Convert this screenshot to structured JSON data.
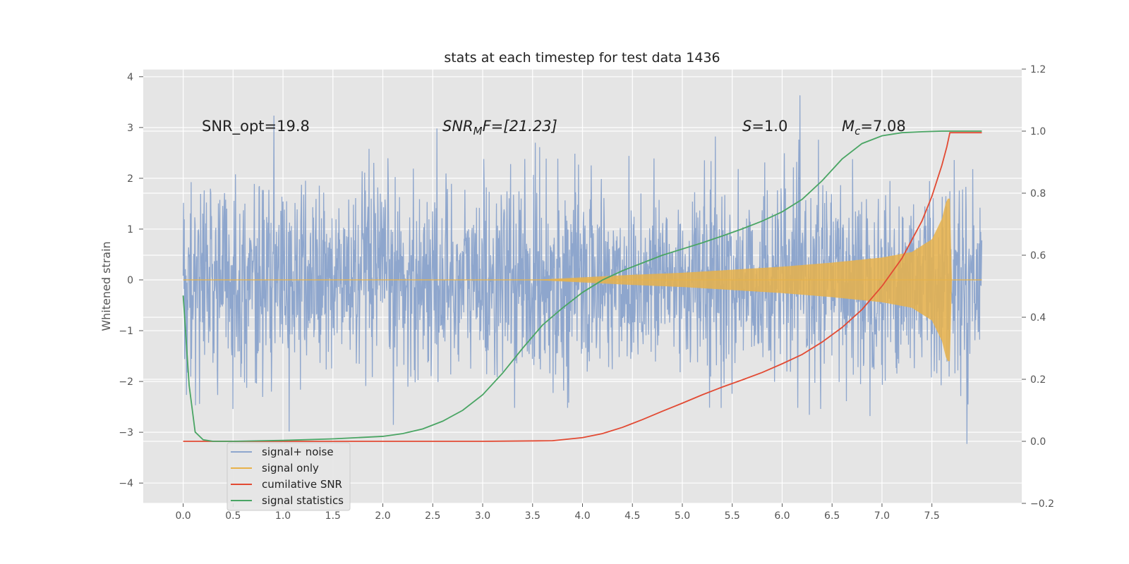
{
  "chart_data": {
    "type": "line",
    "title": "stats at each timestep for test data 1436",
    "ylabel": "Whitened strain",
    "xticks": [
      "0.0",
      "0.5",
      "1.0",
      "1.5",
      "2.0",
      "2.5",
      "3.0",
      "3.5",
      "4.0",
      "4.5",
      "5.0",
      "5.5",
      "6.0",
      "6.5",
      "7.0",
      "7.5"
    ],
    "yticks": [
      "4",
      "3",
      "2",
      "1",
      "0",
      "−1",
      "−2",
      "−3",
      "−4"
    ],
    "y2ticks": [
      "1.2",
      "1.0",
      "0.8",
      "0.6",
      "0.4",
      "0.2",
      "0.0",
      "−0.2"
    ],
    "xlim": [
      -0.4,
      8.4
    ],
    "ylim": [
      -4.4,
      4.15
    ],
    "y2lim": [
      -0.2,
      1.2
    ],
    "grid": true,
    "legend_position": "lower-left",
    "annotations": {
      "snr_opt": "SNR_opt=19.8",
      "snr_mf_pre": "SNR",
      "snr_mf_sub": "M",
      "snr_mf_post": "F=[21.23]",
      "s_pre": "S",
      "s_post": "=1.0",
      "mc_pre": "M",
      "mc_sub": "c",
      "mc_post": "=7.08"
    },
    "colors": {
      "background": "#e5e5e5",
      "grid": "#ffffff",
      "noise": "#8ea6cd",
      "signal": "#e8b24a",
      "snr": "#e24a33",
      "stats": "#4aa564"
    },
    "series": [
      {
        "name": "signal+ noise",
        "axis": "left",
        "note": "noisy trace spanning t=0 to 8, typical amplitude ±1.5, peaks to about ±3.8"
      },
      {
        "name": "signal only",
        "axis": "left",
        "envelope": {
          "x": [
            0.0,
            3.5,
            4.0,
            4.5,
            5.0,
            5.5,
            6.0,
            6.5,
            7.0,
            7.3,
            7.5,
            7.6,
            7.65,
            7.68,
            7.7,
            8.0
          ],
          "amplitude": [
            0.0,
            0.0,
            0.05,
            0.1,
            0.14,
            0.2,
            0.26,
            0.34,
            0.44,
            0.55,
            0.8,
            1.2,
            1.6,
            1.6,
            0.0,
            0.0
          ]
        }
      },
      {
        "name": "cumilative SNR",
        "axis": "right",
        "x": [
          0.0,
          1.0,
          2.0,
          3.0,
          3.7,
          4.0,
          4.2,
          4.4,
          4.6,
          4.8,
          5.0,
          5.2,
          5.4,
          5.6,
          5.8,
          6.0,
          6.2,
          6.4,
          6.6,
          6.8,
          7.0,
          7.2,
          7.4,
          7.5,
          7.6,
          7.65,
          7.68,
          8.0
        ],
        "values": [
          0.0,
          0.0,
          0.0,
          0.0,
          0.002,
          0.012,
          0.025,
          0.045,
          0.07,
          0.097,
          0.123,
          0.15,
          0.175,
          0.198,
          0.222,
          0.25,
          0.28,
          0.32,
          0.367,
          0.425,
          0.5,
          0.59,
          0.71,
          0.79,
          0.89,
          0.95,
          0.995,
          0.995
        ]
      },
      {
        "name": "signal statistics",
        "axis": "right",
        "x": [
          0.0,
          0.06,
          0.12,
          0.2,
          0.3,
          0.5,
          1.0,
          1.5,
          2.0,
          2.2,
          2.4,
          2.6,
          2.8,
          3.0,
          3.2,
          3.4,
          3.6,
          3.8,
          4.0,
          4.2,
          4.4,
          4.6,
          4.8,
          5.0,
          5.2,
          5.4,
          5.6,
          5.8,
          6.0,
          6.2,
          6.4,
          6.6,
          6.8,
          7.0,
          7.2,
          7.4,
          7.6,
          8.0
        ],
        "values": [
          0.47,
          0.18,
          0.03,
          0.005,
          0.0,
          0.0,
          0.003,
          0.008,
          0.016,
          0.025,
          0.04,
          0.065,
          0.1,
          0.15,
          0.22,
          0.3,
          0.375,
          0.43,
          0.48,
          0.52,
          0.55,
          0.575,
          0.6,
          0.62,
          0.64,
          0.662,
          0.685,
          0.71,
          0.74,
          0.78,
          0.84,
          0.91,
          0.96,
          0.985,
          0.995,
          0.998,
          1.0,
          1.0
        ]
      }
    ]
  }
}
